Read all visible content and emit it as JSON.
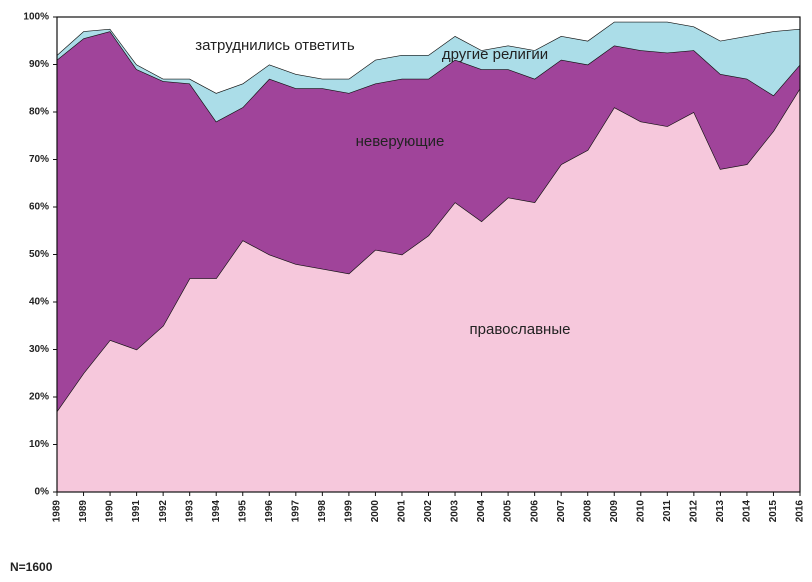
{
  "chart_data": {
    "type": "stacked-area",
    "categories": [
      "1989",
      "1989",
      "1990",
      "1991",
      "1992",
      "1993",
      "1994",
      "1995",
      "1996",
      "1997",
      "1998",
      "1999",
      "2000",
      "2001",
      "2002",
      "2003",
      "2004",
      "2005",
      "2006",
      "2007",
      "2008",
      "2009",
      "2010",
      "2011",
      "2012",
      "2013",
      "2014",
      "2015",
      "2016"
    ],
    "series": [
      {
        "name": "православные",
        "color": "#f6c8dc",
        "values": [
          17,
          25,
          32,
          30,
          35,
          45,
          45,
          53,
          50,
          48,
          47,
          46,
          51,
          50,
          54,
          61,
          57,
          62,
          61,
          69,
          72,
          81,
          78,
          77,
          80,
          68,
          69,
          76,
          85
        ]
      },
      {
        "name": "неверующие",
        "color": "#a0449a",
        "values": [
          74,
          70.5,
          65,
          59,
          51.5,
          41,
          33,
          28,
          37,
          37,
          38,
          38,
          35,
          37,
          33,
          30,
          32,
          27,
          26,
          22,
          18,
          13,
          15,
          15.5,
          13,
          20,
          18,
          7.5,
          5
        ]
      },
      {
        "name": "другие религии",
        "color": "#abdde8",
        "values": [
          1,
          1.5,
          0.5,
          1,
          0.5,
          1,
          6,
          5,
          3,
          3,
          2,
          3,
          5,
          5,
          5,
          5,
          4,
          5,
          6,
          5,
          5,
          5,
          6,
          6.5,
          5,
          7,
          9,
          13.5,
          7.5
        ]
      },
      {
        "name": "затруднились ответить",
        "color": "#ffffff",
        "values": [
          8,
          3,
          2.5,
          10,
          13,
          13,
          16,
          14,
          10,
          12,
          13,
          13,
          9,
          8,
          8,
          4,
          7,
          6,
          7,
          4,
          5,
          1,
          1,
          1,
          2,
          5,
          4,
          3,
          2.5
        ]
      }
    ],
    "ylim": [
      0,
      100
    ],
    "yticks": [
      {
        "value": 0,
        "label": "0%"
      },
      {
        "value": 10,
        "label": "10%"
      },
      {
        "value": 20,
        "label": "20%"
      },
      {
        "value": 30,
        "label": "30%"
      },
      {
        "value": 40,
        "label": "40%"
      },
      {
        "value": 50,
        "label": "50%"
      },
      {
        "value": 60,
        "label": "60%"
      },
      {
        "value": 70,
        "label": "70%"
      },
      {
        "value": 80,
        "label": "80%"
      },
      {
        "value": 90,
        "label": "90%"
      },
      {
        "value": 100,
        "label": "100%"
      }
    ],
    "note": "N=1600"
  }
}
